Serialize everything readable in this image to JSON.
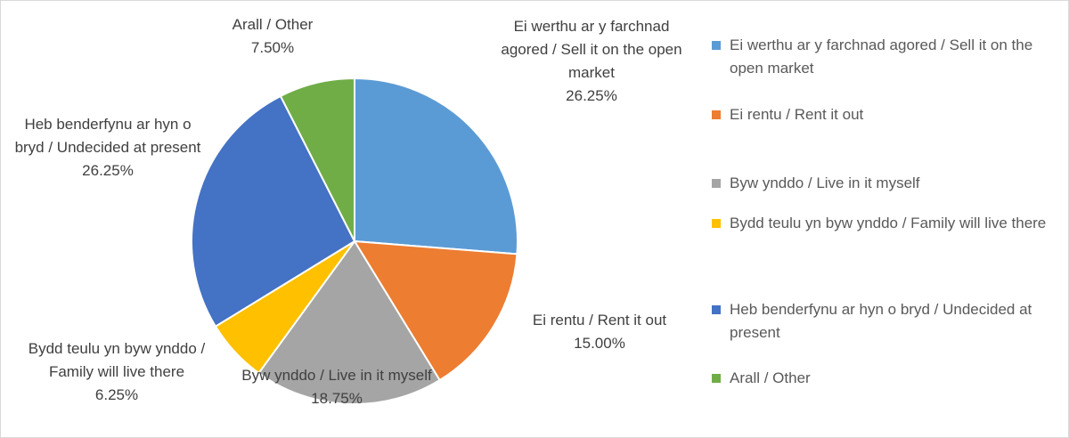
{
  "chart_data": {
    "type": "pie",
    "categories": [
      "Ei werthu ar y farchnad agored / Sell it on the open market",
      "Ei rentu / Rent it out",
      "Byw ynddo / Live in it myself",
      "Bydd teulu yn byw ynddo / Family will live there",
      "Heb benderfynu ar hyn o bryd / Undecided at present",
      "Arall / Other"
    ],
    "values": [
      26.25,
      15,
      18.75,
      6.25,
      26.25,
      7.5
    ],
    "value_labels": [
      "26.25%",
      "15.00%",
      "18.75%",
      "6.25%",
      "26.25%",
      "7.50%"
    ],
    "colors": [
      "#5b9bd5",
      "#ed7d31",
      "#a5a5a5",
      "#ffc000",
      "#4472c4",
      "#70ad47"
    ],
    "legend": "right"
  }
}
